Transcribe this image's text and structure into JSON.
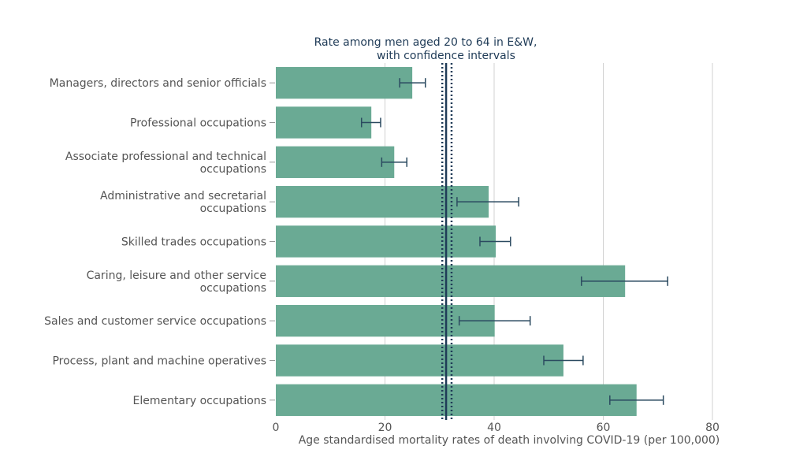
{
  "chart_data": {
    "type": "bar",
    "orientation": "horizontal",
    "title": "",
    "xlabel": "Age standardised mortality rates of death involving COVID-19 (per 100,000)",
    "ylabel": "",
    "xlim": [
      0,
      80
    ],
    "xticks": [
      0,
      20,
      40,
      60,
      80
    ],
    "grid": true,
    "bar_color": "#6aaa94",
    "error_color": "#2b4a60",
    "categories": [
      [
        "Managers, directors and senior officials"
      ],
      [
        "Professional occupations"
      ],
      [
        "Associate professional and technical",
        "occupations"
      ],
      [
        "Administrative and secretarial",
        "occupations"
      ],
      [
        "Skilled trades occupations"
      ],
      [
        "Caring, leisure and other service",
        "occupations"
      ],
      [
        "Sales and customer service occupations"
      ],
      [
        "Process, plant and machine operatives"
      ],
      [
        "Elementary occupations"
      ]
    ],
    "values": [
      25.0,
      17.5,
      21.7,
      39.0,
      40.3,
      64.0,
      40.1,
      52.7,
      66.1
    ],
    "ci_lower": [
      22.7,
      15.7,
      19.4,
      33.2,
      37.4,
      56.0,
      33.6,
      49.1,
      61.2
    ],
    "ci_upper": [
      27.4,
      19.2,
      24.0,
      44.5,
      43.0,
      71.8,
      46.6,
      56.3,
      71.0
    ],
    "reference": {
      "label_lines": [
        "Rate among men aged 20 to 64 in E&W,",
        "with confidence intervals"
      ],
      "value": 31.2,
      "ci_lower": 30.5,
      "ci_upper": 32.2,
      "color": "#1f3b57"
    }
  }
}
